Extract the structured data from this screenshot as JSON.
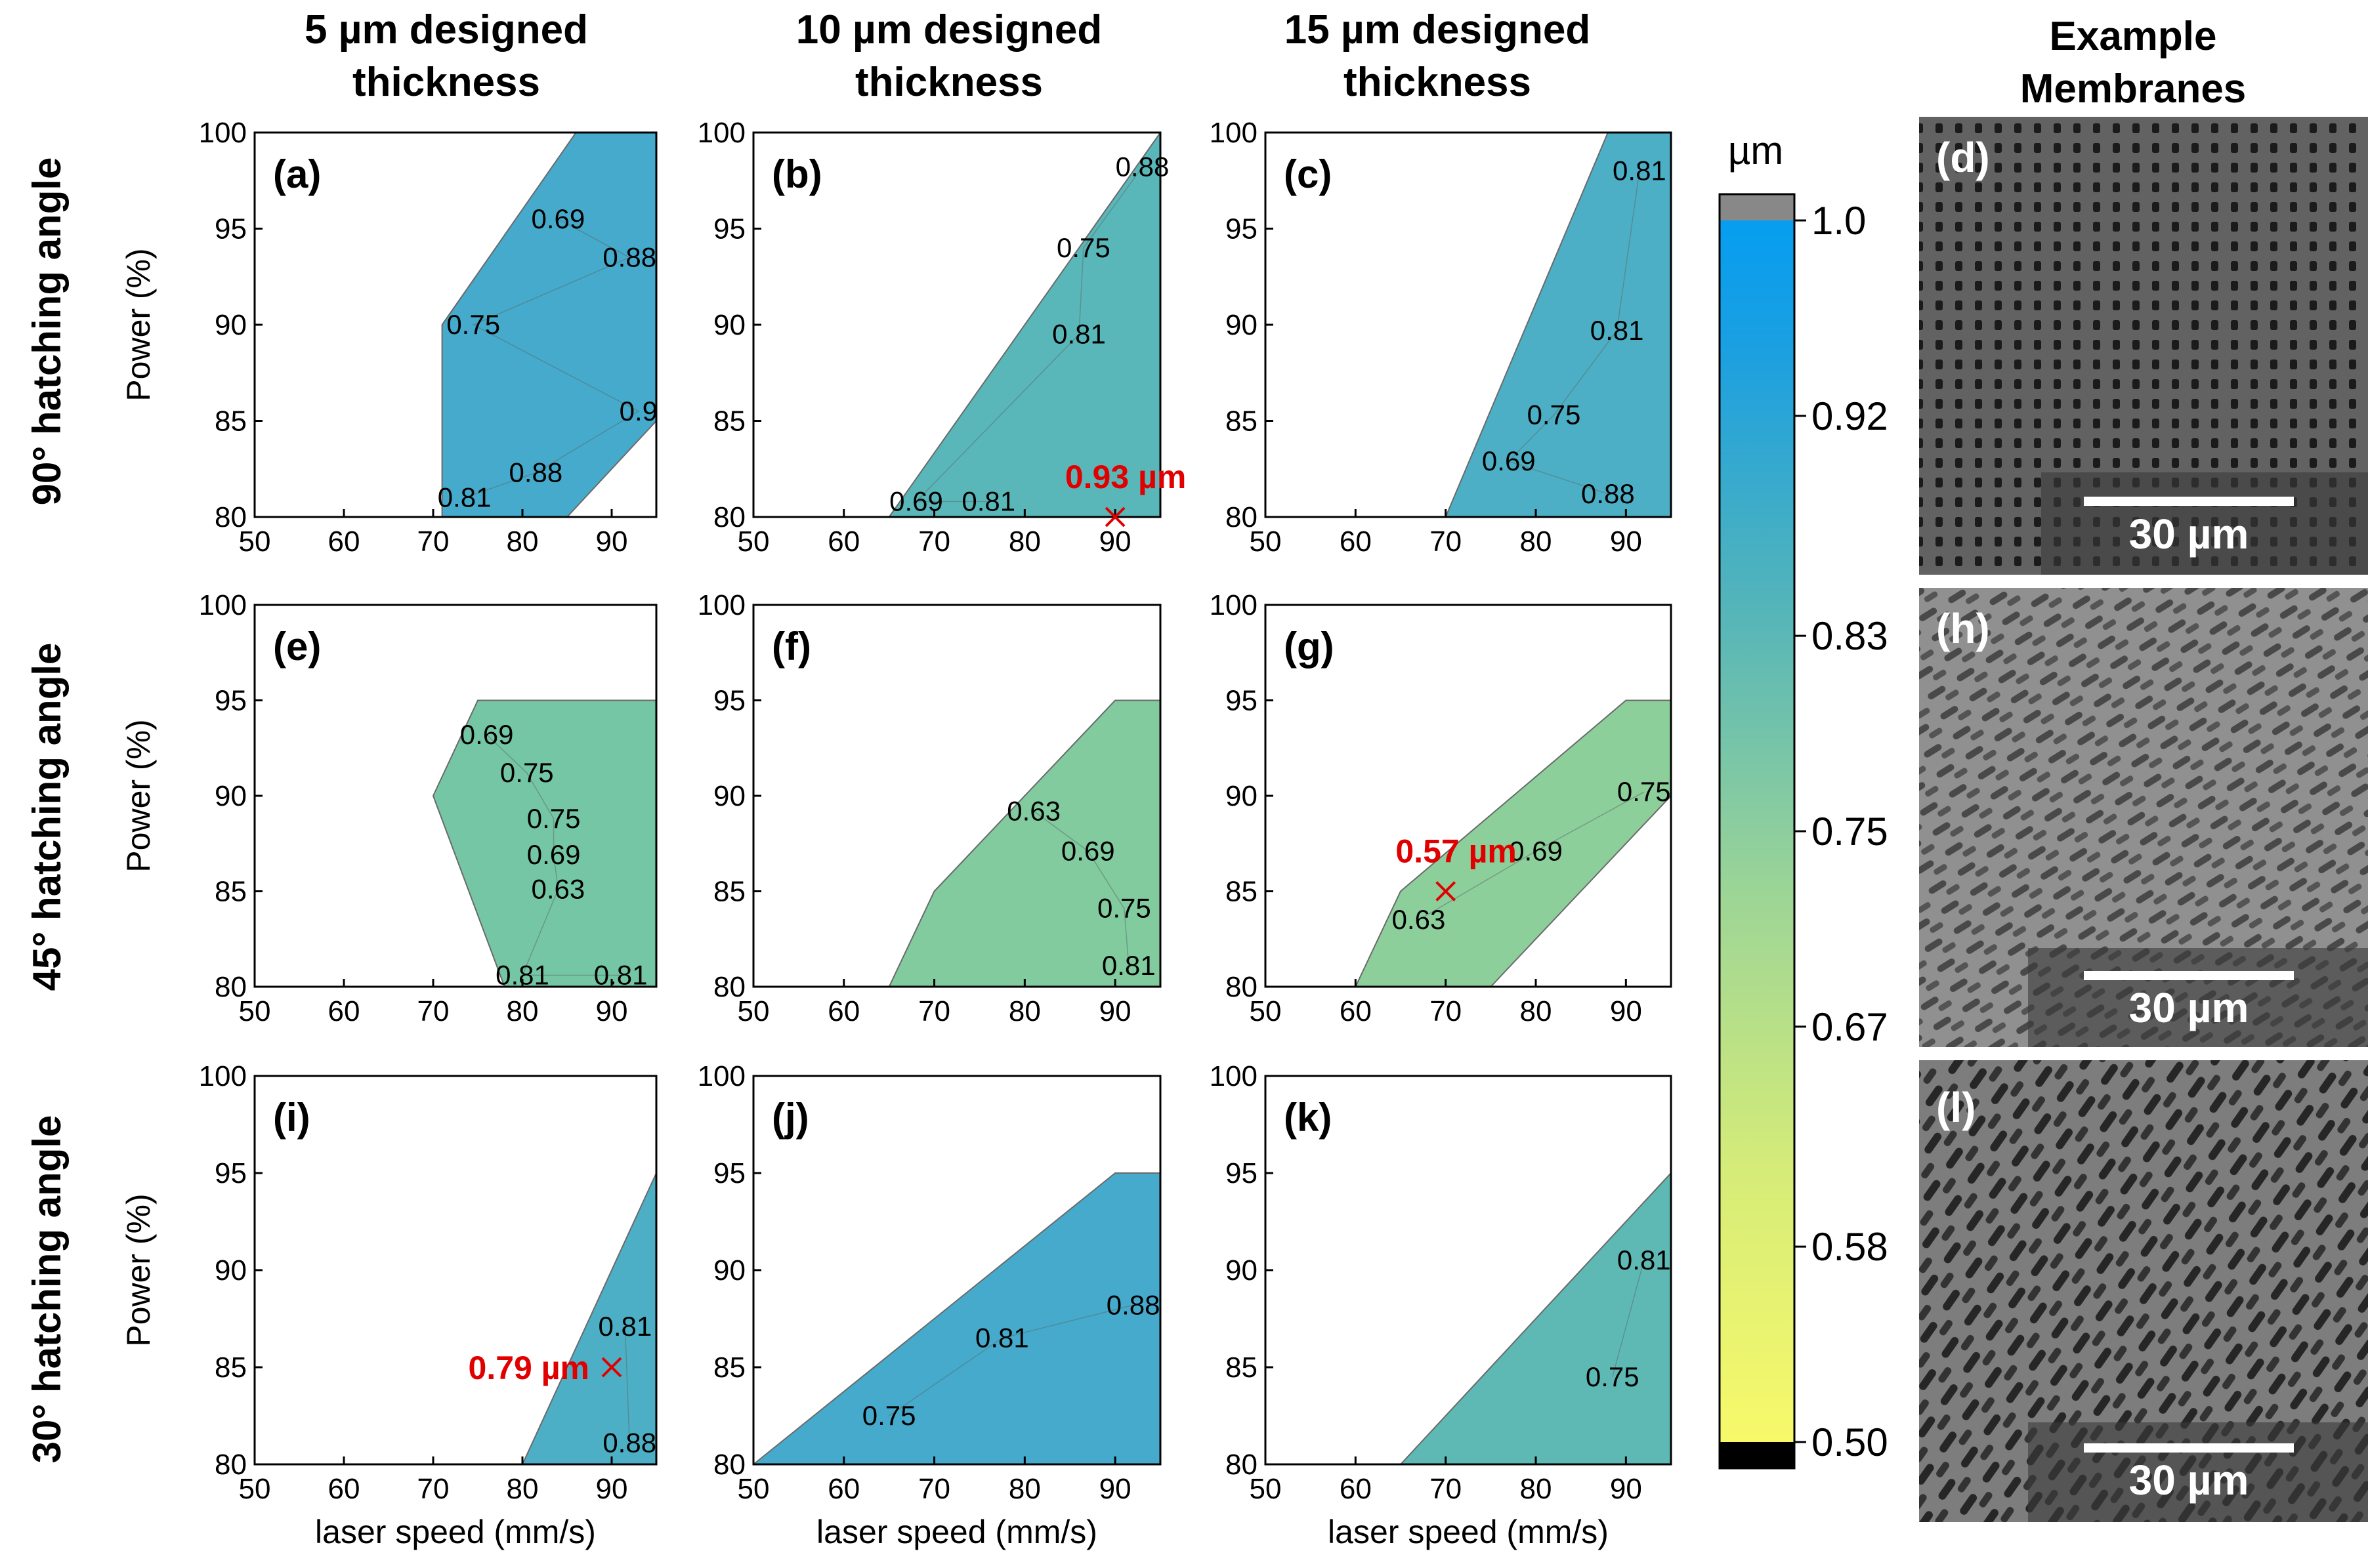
{
  "column_titles": [
    [
      "5 µm designed",
      "thickness"
    ],
    [
      "10 µm designed",
      "thickness"
    ],
    [
      "15 µm designed",
      "thickness"
    ],
    [
      "Example",
      "Membranes"
    ]
  ],
  "row_titles": [
    "90° hatching angle",
    "45° hatching angle",
    "30° hatching angle"
  ],
  "colorbar": {
    "unit": "µm",
    "ticks": [
      "1.0",
      "0.92",
      "0.83",
      "0.75",
      "0.67",
      "0.58",
      "0.50"
    ],
    "colors": [
      "#f7f96a",
      "#b9e08a",
      "#6fc4a6",
      "#3aa3d6",
      "#069ef0"
    ]
  },
  "sem_images": [
    {
      "label": "(d)",
      "scale": "30 µm"
    },
    {
      "label": "(h)",
      "scale": "30 µm"
    },
    {
      "label": "(l)",
      "scale": "30 µm"
    }
  ],
  "chart_data": [
    {
      "type": "heatmap",
      "panel": "(a)",
      "row": 0,
      "col": 0,
      "title": "",
      "xlabel": "",
      "ylabel": "Power (%)",
      "xlim": [
        50,
        95
      ],
      "ylim": [
        80,
        100
      ],
      "xticks": [
        "50",
        "60",
        "70",
        "80",
        "90"
      ],
      "yticks": [
        "80",
        "85",
        "90",
        "95",
        "100"
      ],
      "region": [
        [
          71,
          80
        ],
        [
          71,
          90
        ],
        [
          86,
          100
        ],
        [
          95,
          100
        ],
        [
          95,
          85
        ],
        [
          85,
          80
        ]
      ],
      "fill_value": 0.85,
      "contour_labels": [
        {
          "x": 84,
          "y": 95.5,
          "text": "0.69"
        },
        {
          "x": 92,
          "y": 93.5,
          "text": "0.88"
        },
        {
          "x": 74.5,
          "y": 90,
          "text": "0.75"
        },
        {
          "x": 93,
          "y": 85.5,
          "text": "0.9"
        },
        {
          "x": 81.5,
          "y": 82.3,
          "text": "0.88"
        },
        {
          "x": 73.5,
          "y": 81,
          "text": "0.81"
        }
      ],
      "annotation": null
    },
    {
      "type": "heatmap",
      "panel": "(b)",
      "row": 0,
      "col": 1,
      "title": "",
      "xlabel": "",
      "ylabel": "",
      "xlim": [
        50,
        95
      ],
      "ylim": [
        80,
        100
      ],
      "xticks": [
        "50",
        "60",
        "70",
        "80",
        "90"
      ],
      "yticks": [
        "80",
        "85",
        "90",
        "95",
        "100"
      ],
      "region": [
        [
          65,
          80
        ],
        [
          95,
          100
        ],
        [
          95,
          80
        ]
      ],
      "fill_value": 0.8,
      "contour_labels": [
        {
          "x": 93,
          "y": 98.2,
          "text": "0.88"
        },
        {
          "x": 86.5,
          "y": 94,
          "text": "0.75"
        },
        {
          "x": 86,
          "y": 89.5,
          "text": "0.81"
        },
        {
          "x": 68,
          "y": 80.8,
          "text": "0.69"
        },
        {
          "x": 76,
          "y": 80.8,
          "text": "0.81"
        }
      ],
      "annotation": {
        "x": 90,
        "y": 80,
        "text": "0.93 µm"
      }
    },
    {
      "type": "heatmap",
      "panel": "(c)",
      "row": 0,
      "col": 2,
      "title": "",
      "xlabel": "",
      "ylabel": "",
      "xlim": [
        50,
        95
      ],
      "ylim": [
        80,
        100
      ],
      "xticks": [
        "50",
        "60",
        "70",
        "80",
        "90"
      ],
      "yticks": [
        "80",
        "85",
        "90",
        "95",
        "100"
      ],
      "region": [
        [
          70,
          80
        ],
        [
          88,
          100
        ],
        [
          95,
          100
        ],
        [
          95,
          80
        ]
      ],
      "fill_value": 0.83,
      "contour_labels": [
        {
          "x": 91.5,
          "y": 98,
          "text": "0.81"
        },
        {
          "x": 89,
          "y": 89.7,
          "text": "0.81"
        },
        {
          "x": 82,
          "y": 85.3,
          "text": "0.75"
        },
        {
          "x": 77,
          "y": 82.9,
          "text": "0.69"
        },
        {
          "x": 88,
          "y": 81.2,
          "text": "0.88"
        }
      ],
      "annotation": null
    },
    {
      "type": "heatmap",
      "panel": "(e)",
      "row": 1,
      "col": 0,
      "title": "",
      "xlabel": "",
      "ylabel": "Power (%)",
      "xlim": [
        50,
        95
      ],
      "ylim": [
        80,
        100
      ],
      "xticks": [
        "50",
        "60",
        "70",
        "80",
        "90"
      ],
      "yticks": [
        "80",
        "85",
        "90",
        "95",
        "100"
      ],
      "region": [
        [
          70,
          90
        ],
        [
          75,
          95
        ],
        [
          95,
          95
        ],
        [
          95,
          80
        ],
        [
          78,
          80
        ]
      ],
      "fill_value": 0.74,
      "contour_labels": [
        {
          "x": 76,
          "y": 93.2,
          "text": "0.69"
        },
        {
          "x": 80.5,
          "y": 91.2,
          "text": "0.75"
        },
        {
          "x": 83.5,
          "y": 88.8,
          "text": "0.75"
        },
        {
          "x": 83.5,
          "y": 86.9,
          "text": "0.69"
        },
        {
          "x": 84,
          "y": 85.1,
          "text": "0.63"
        },
        {
          "x": 80,
          "y": 80.6,
          "text": "0.81"
        },
        {
          "x": 91,
          "y": 80.6,
          "text": "0.81"
        }
      ],
      "annotation": null
    },
    {
      "type": "heatmap",
      "panel": "(f)",
      "row": 1,
      "col": 1,
      "title": "",
      "xlabel": "",
      "ylabel": "",
      "xlim": [
        50,
        95
      ],
      "ylim": [
        80,
        100
      ],
      "xticks": [
        "50",
        "60",
        "70",
        "80",
        "90"
      ],
      "yticks": [
        "80",
        "85",
        "90",
        "95",
        "100"
      ],
      "region": [
        [
          65,
          80
        ],
        [
          70,
          85
        ],
        [
          90,
          95
        ],
        [
          95,
          95
        ],
        [
          95,
          80
        ]
      ],
      "fill_value": 0.72,
      "contour_labels": [
        {
          "x": 81,
          "y": 89.2,
          "text": "0.63"
        },
        {
          "x": 87,
          "y": 87.1,
          "text": "0.69"
        },
        {
          "x": 91,
          "y": 84.1,
          "text": "0.75"
        },
        {
          "x": 91.5,
          "y": 81.1,
          "text": "0.81"
        }
      ],
      "annotation": null
    },
    {
      "type": "heatmap",
      "panel": "(g)",
      "row": 1,
      "col": 2,
      "title": "",
      "xlabel": "",
      "ylabel": "",
      "xlim": [
        50,
        95
      ],
      "ylim": [
        80,
        100
      ],
      "xticks": [
        "50",
        "60",
        "70",
        "80",
        "90"
      ],
      "yticks": [
        "80",
        "85",
        "90",
        "95",
        "100"
      ],
      "region": [
        [
          60,
          80
        ],
        [
          65,
          85
        ],
        [
          90,
          95
        ],
        [
          95,
          95
        ],
        [
          95,
          90
        ],
        [
          75,
          80
        ]
      ],
      "fill_value": 0.7,
      "contour_labels": [
        {
          "x": 92,
          "y": 90.2,
          "text": "0.75"
        },
        {
          "x": 80,
          "y": 87.1,
          "text": "0.69"
        },
        {
          "x": 67,
          "y": 83.5,
          "text": "0.63"
        }
      ],
      "annotation": {
        "x": 70,
        "y": 85,
        "text": "0.57 µm"
      }
    },
    {
      "type": "heatmap",
      "panel": "(i)",
      "row": 2,
      "col": 0,
      "title": "",
      "xlabel": "laser speed (mm/s)",
      "ylabel": "Power (%)",
      "xlim": [
        50,
        95
      ],
      "ylim": [
        80,
        100
      ],
      "xticks": [
        "50",
        "60",
        "70",
        "80",
        "90"
      ],
      "yticks": [
        "80",
        "85",
        "90",
        "95",
        "100"
      ],
      "region": [
        [
          80,
          80
        ],
        [
          95,
          95
        ],
        [
          95,
          80
        ]
      ],
      "fill_value": 0.83,
      "contour_labels": [
        {
          "x": 91.5,
          "y": 87.1,
          "text": "0.81"
        },
        {
          "x": 92,
          "y": 81.1,
          "text": "0.88"
        }
      ],
      "annotation": {
        "x": 90,
        "y": 85,
        "text": "0.79 µm"
      }
    },
    {
      "type": "heatmap",
      "panel": "(j)",
      "row": 2,
      "col": 1,
      "title": "",
      "xlabel": "laser speed (mm/s)",
      "ylabel": "",
      "xlim": [
        50,
        95
      ],
      "ylim": [
        80,
        100
      ],
      "xticks": [
        "50",
        "60",
        "70",
        "80",
        "90"
      ],
      "yticks": [
        "80",
        "85",
        "90",
        "95",
        "100"
      ],
      "region": [
        [
          50,
          80
        ],
        [
          90,
          95
        ],
        [
          95,
          95
        ],
        [
          95,
          80
        ]
      ],
      "fill_value": 0.85,
      "contour_labels": [
        {
          "x": 92,
          "y": 88.2,
          "text": "0.88"
        },
        {
          "x": 77.5,
          "y": 86.5,
          "text": "0.81"
        },
        {
          "x": 65,
          "y": 82.5,
          "text": "0.75"
        }
      ],
      "annotation": null
    },
    {
      "type": "heatmap",
      "panel": "(k)",
      "row": 2,
      "col": 2,
      "title": "",
      "xlabel": "laser speed (mm/s)",
      "ylabel": "",
      "xlim": [
        50,
        95
      ],
      "ylim": [
        80,
        100
      ],
      "xticks": [
        "50",
        "60",
        "70",
        "80",
        "90"
      ],
      "yticks": [
        "80",
        "85",
        "90",
        "95",
        "100"
      ],
      "region": [
        [
          65,
          80
        ],
        [
          95,
          95
        ],
        [
          95,
          80
        ]
      ],
      "fill_value": 0.79,
      "contour_labels": [
        {
          "x": 92,
          "y": 90.5,
          "text": "0.81"
        },
        {
          "x": 88.5,
          "y": 84.5,
          "text": "0.75"
        }
      ],
      "annotation": null
    }
  ]
}
